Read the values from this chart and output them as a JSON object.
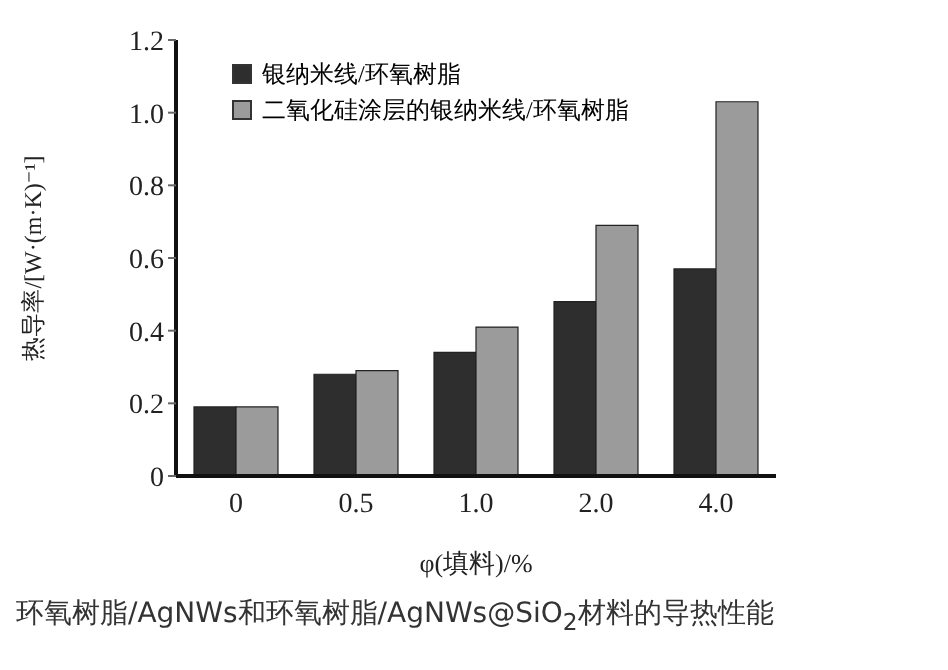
{
  "chart_data": {
    "type": "bar",
    "categories": [
      "0",
      "0.5",
      "1.0",
      "2.0",
      "4.0"
    ],
    "series": [
      {
        "name": "银纳米线/环氧树脂",
        "color": "#2e2e2e",
        "values": [
          0.19,
          0.28,
          0.34,
          0.48,
          0.57
        ]
      },
      {
        "name": "二氧化硅涂层的银纳米线/环氧树脂",
        "color": "#9b9b9b",
        "values": [
          0.19,
          0.29,
          0.41,
          0.69,
          1.03
        ]
      }
    ],
    "xlabel": "φ(填料)/%",
    "ylabel": "热导率/[W·(m·K)⁻¹]",
    "ylim": [
      0,
      1.2
    ],
    "yticks": [
      0,
      0.2,
      0.4,
      0.6,
      0.8,
      {
        "value": 1,
        "label": "1.0"
      },
      1.2
    ],
    "grid": false,
    "legend": "top left",
    "annotations": [
      "环氧树脂/AgNWs和环氧树脂/AgNWs@SiO$_{2}$材料的导热性能"
    ]
  }
}
